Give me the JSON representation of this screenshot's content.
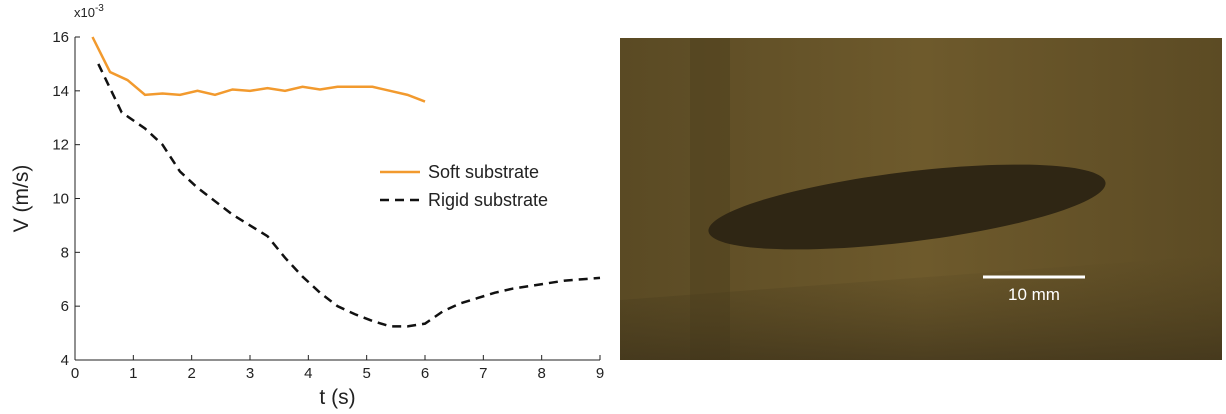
{
  "chart_data": {
    "type": "line",
    "xlabel": "t (s)",
    "ylabel": "V (m/s)",
    "y_multiplier": {
      "base": "x10",
      "exponent": "-3"
    },
    "xlim": [
      0,
      9
    ],
    "ylim": [
      4,
      16
    ],
    "xticks": [
      0,
      1,
      2,
      3,
      4,
      5,
      6,
      7,
      8,
      9
    ],
    "yticks": [
      4,
      6,
      8,
      10,
      12,
      14,
      16
    ],
    "legend": "right",
    "series": [
      {
        "name": "Soft substrate",
        "color": "#f29a2e",
        "dash": false,
        "x": [
          0.3,
          0.6,
          0.9,
          1.2,
          1.5,
          1.8,
          2.1,
          2.4,
          2.7,
          3.0,
          3.3,
          3.6,
          3.9,
          4.2,
          4.5,
          4.8,
          5.1,
          5.4,
          5.7,
          6.0
        ],
        "values": [
          16,
          14.7,
          14.4,
          13.85,
          13.9,
          13.85,
          14.0,
          13.85,
          14.05,
          14.0,
          14.1,
          14.0,
          14.15,
          14.05,
          14.15,
          14.15,
          14.15,
          14.0,
          13.85,
          13.6
        ]
      },
      {
        "name": "Rigid substrate",
        "color": "#111111",
        "dash": true,
        "x": [
          0.4,
          0.8,
          1.2,
          1.5,
          1.8,
          2.1,
          2.4,
          2.7,
          3.0,
          3.3,
          3.6,
          3.9,
          4.2,
          4.5,
          4.8,
          5.1,
          5.4,
          5.7,
          6.0,
          6.3,
          6.6,
          6.9,
          7.2,
          7.5,
          7.8,
          8.1,
          8.4,
          8.7,
          9.0
        ],
        "values": [
          15,
          13.2,
          12.6,
          12.0,
          11.0,
          10.4,
          9.9,
          9.4,
          9.0,
          8.6,
          7.8,
          7.1,
          6.5,
          6.0,
          5.7,
          5.45,
          5.25,
          5.25,
          5.35,
          5.8,
          6.1,
          6.3,
          6.5,
          6.65,
          6.75,
          6.85,
          6.95,
          7.0,
          7.05
        ]
      }
    ]
  },
  "photo": {
    "scale_bar_label": "10 mm"
  }
}
